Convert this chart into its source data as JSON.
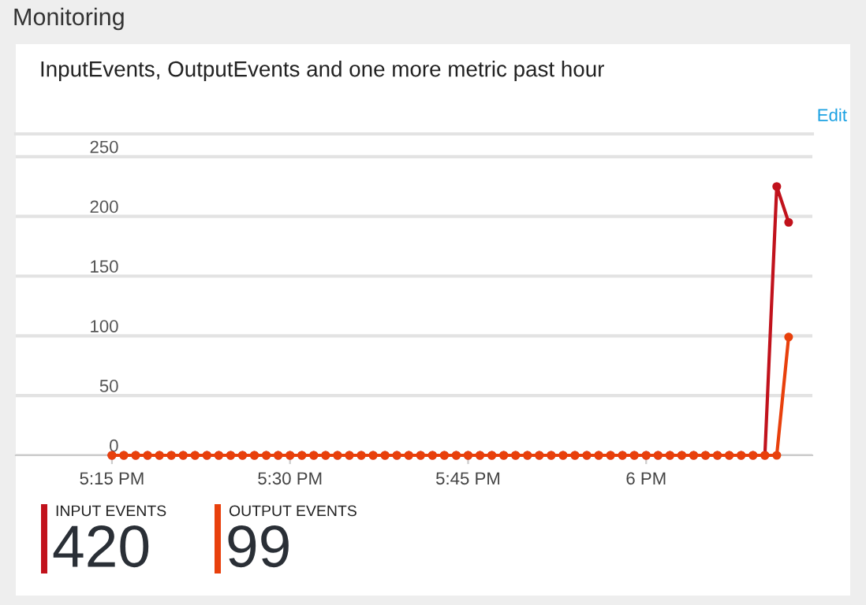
{
  "chart_data": {
    "type": "line",
    "title": "Monitoring",
    "subtitle": "InputEvents, OutputEvents and one more metric past hour",
    "categories": [
      "5:15 PM",
      null,
      null,
      null,
      null,
      null,
      null,
      null,
      null,
      null,
      null,
      null,
      null,
      null,
      null,
      "5:30 PM",
      null,
      null,
      null,
      null,
      null,
      null,
      null,
      null,
      null,
      null,
      null,
      null,
      null,
      null,
      "5:45 PM",
      null,
      null,
      null,
      null,
      null,
      null,
      null,
      null,
      null,
      null,
      null,
      null,
      null,
      null,
      "6 PM",
      null,
      null,
      null,
      null,
      null,
      null,
      null,
      null,
      null,
      null,
      null,
      null
    ],
    "series": [
      {
        "name": "INPUT EVENTS",
        "color": "#c1121c",
        "values": [
          0,
          0,
          0,
          0,
          0,
          0,
          0,
          0,
          0,
          0,
          0,
          0,
          0,
          0,
          0,
          0,
          0,
          0,
          0,
          0,
          0,
          0,
          0,
          0,
          0,
          0,
          0,
          0,
          0,
          0,
          0,
          0,
          0,
          0,
          0,
          0,
          0,
          0,
          0,
          0,
          0,
          0,
          0,
          0,
          0,
          0,
          0,
          0,
          0,
          0,
          0,
          0,
          0,
          0,
          0,
          0,
          225,
          195
        ]
      },
      {
        "name": "OUTPUT EVENTS",
        "color": "#e8400c",
        "values": [
          0,
          0,
          0,
          0,
          0,
          0,
          0,
          0,
          0,
          0,
          0,
          0,
          0,
          0,
          0,
          0,
          0,
          0,
          0,
          0,
          0,
          0,
          0,
          0,
          0,
          0,
          0,
          0,
          0,
          0,
          0,
          0,
          0,
          0,
          0,
          0,
          0,
          0,
          0,
          0,
          0,
          0,
          0,
          0,
          0,
          0,
          0,
          0,
          0,
          0,
          0,
          0,
          0,
          0,
          0,
          0,
          0,
          99
        ]
      }
    ],
    "ylim": [
      0,
      269
    ],
    "yticks": [
      0,
      50,
      100,
      150,
      200,
      250
    ],
    "grid": "y",
    "marker": "circle",
    "line_style": "solid",
    "legend": "bottom",
    "annotations": [
      "Edit",
      "420",
      "99"
    ]
  }
}
